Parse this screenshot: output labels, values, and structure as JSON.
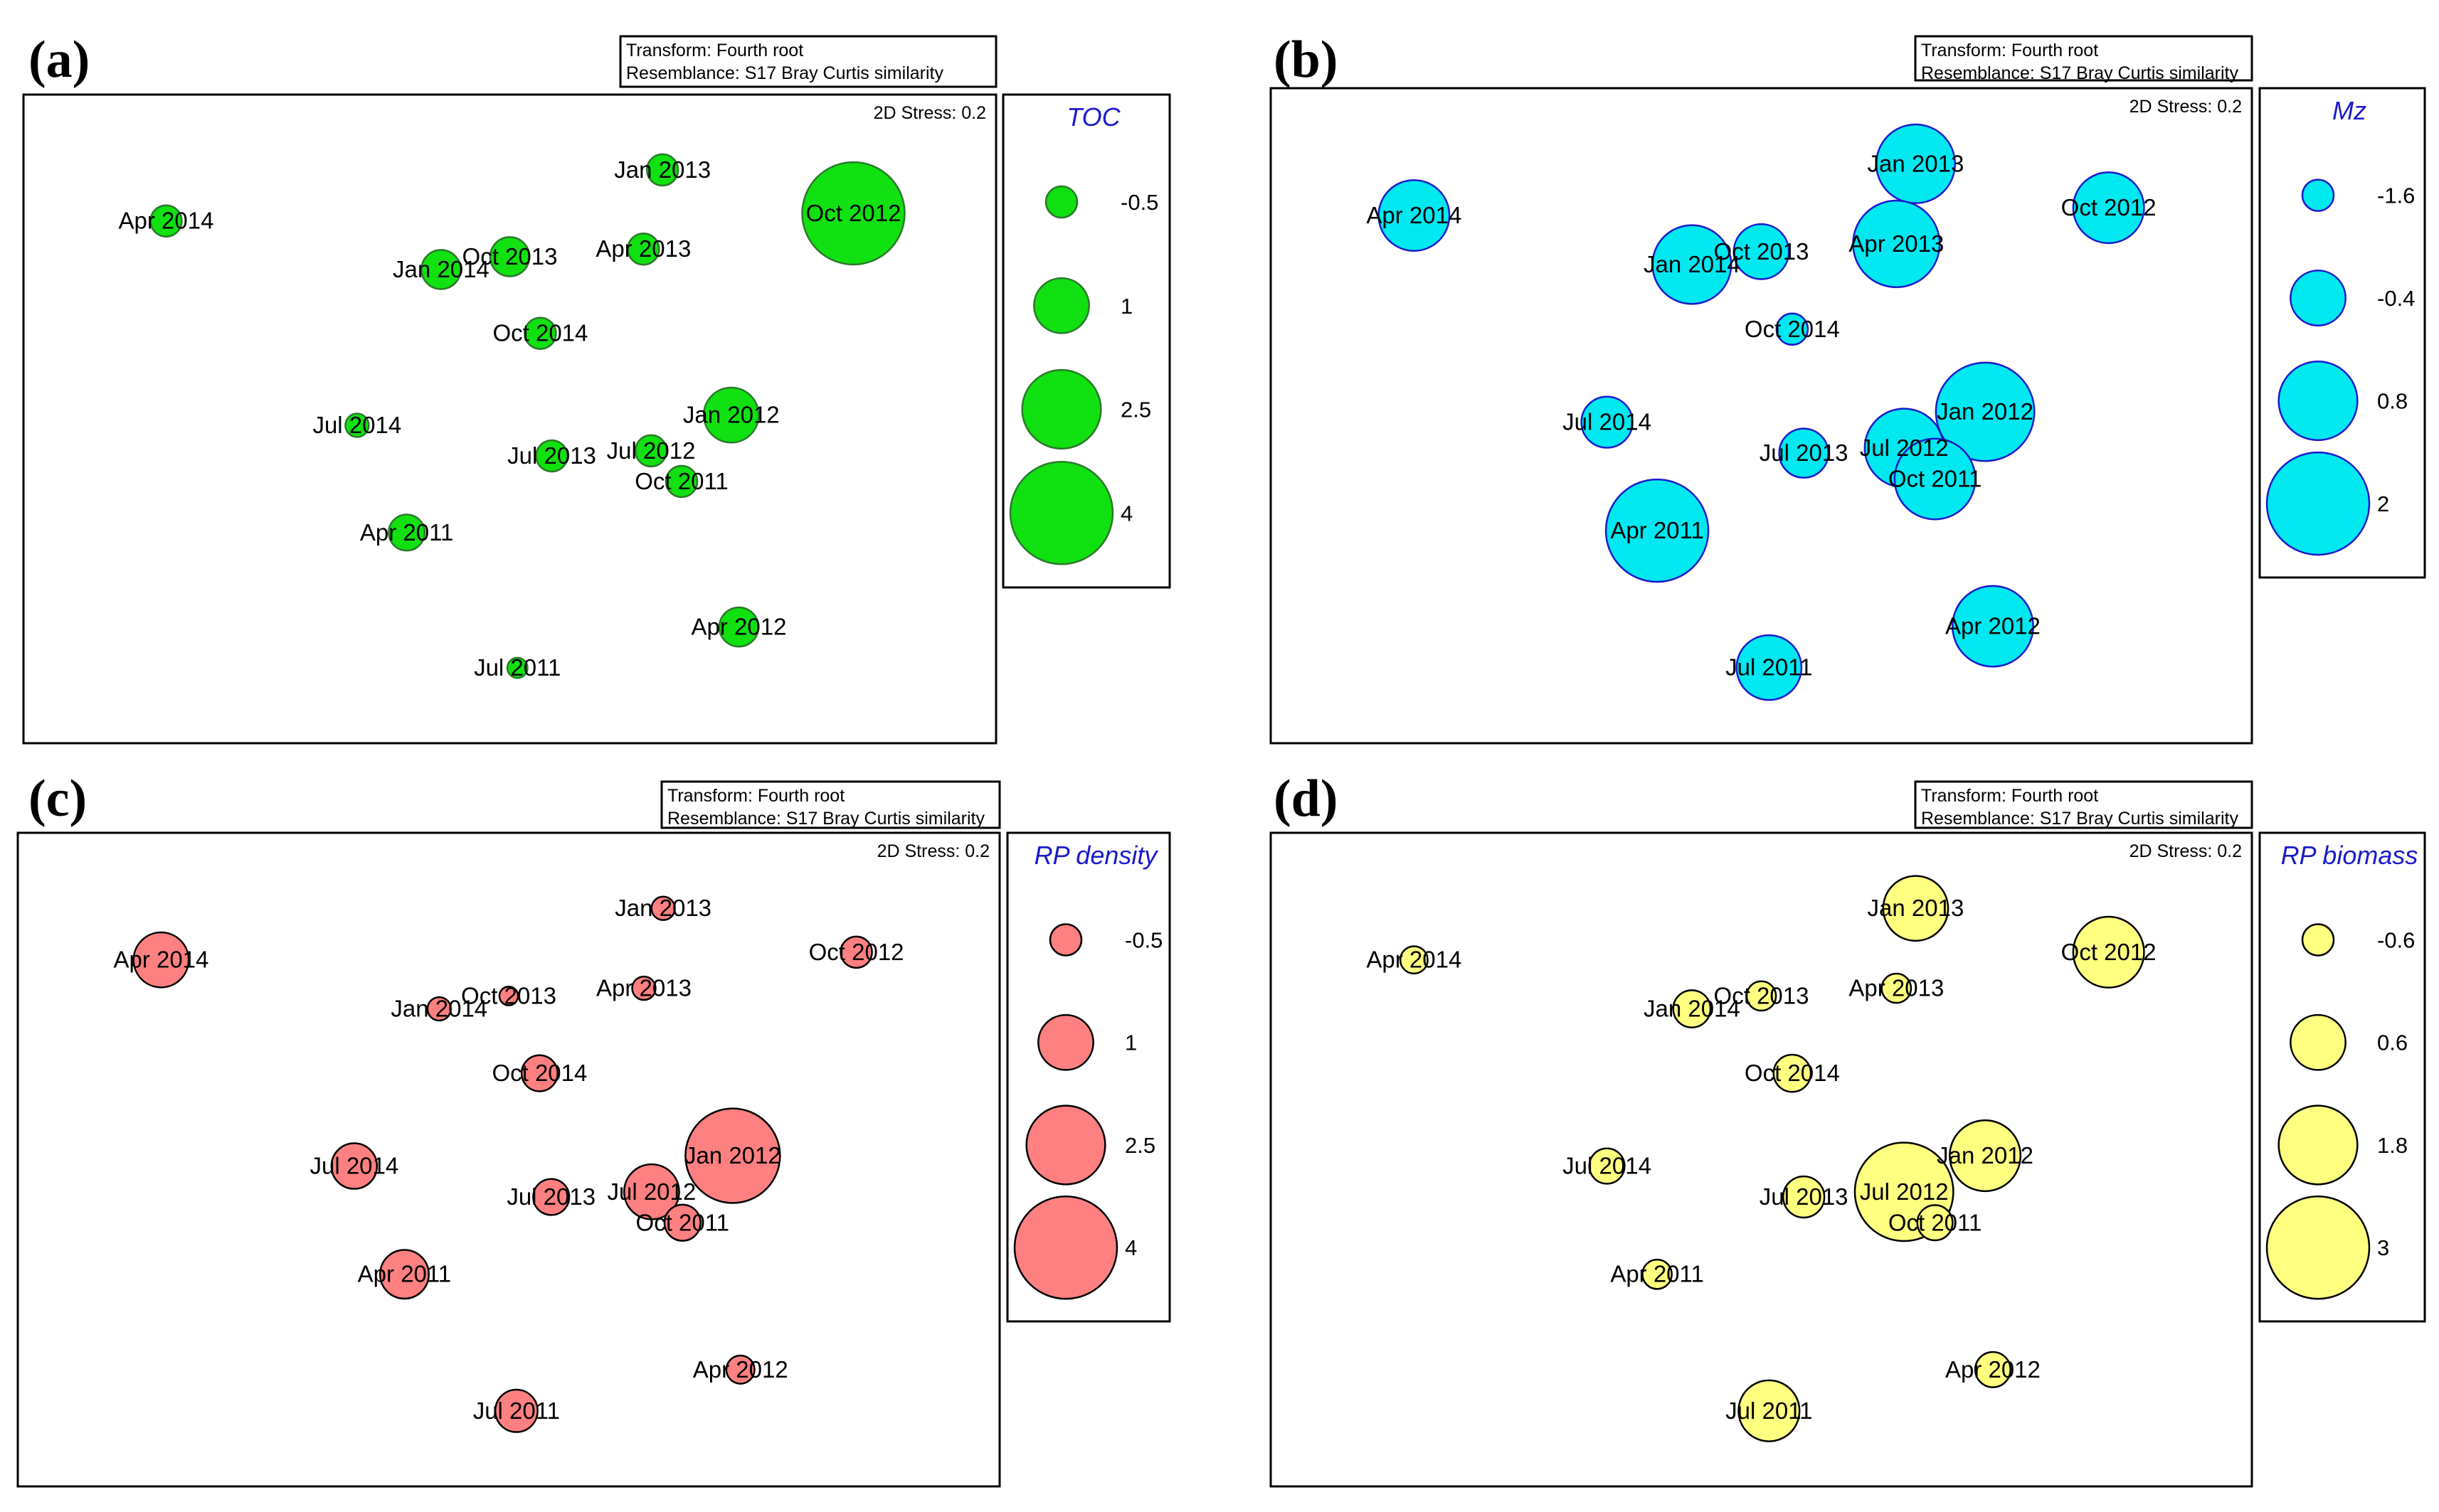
{
  "figure": {
    "transform_label": "Transform: Fourth root",
    "resemblance_label": "Resemblance: S17 Bray Curtis similarity",
    "stress_label": "2D Stress: 0.2"
  },
  "chart_data": [
    {
      "type": "scatter",
      "subtype": "bubble",
      "panel_label": "(a)",
      "variable": "TOC",
      "fill_color": "#11e011",
      "stroke_color": "#2a7a2a",
      "legend_values": [
        "-0.5",
        "1",
        "2.5",
        "4"
      ],
      "points": [
        {
          "label": "Jan 2013",
          "x": 0.4,
          "y": 1.0,
          "size": -0.5
        },
        {
          "label": "Oct 2012",
          "x": 0.9,
          "y": 0.83,
          "size": 4.0
        },
        {
          "label": "Apr 2014",
          "x": -0.9,
          "y": 0.8,
          "size": -0.5
        },
        {
          "label": "Apr 2013",
          "x": 0.35,
          "y": 0.69,
          "size": -0.5
        },
        {
          "label": "Oct 2013",
          "x": 0.0,
          "y": 0.66,
          "size": 0.0
        },
        {
          "label": "Jan 2014",
          "x": -0.18,
          "y": 0.61,
          "size": 0.0
        },
        {
          "label": "Oct 2014",
          "x": 0.08,
          "y": 0.36,
          "size": -0.5
        },
        {
          "label": "Jan 2012",
          "x": 0.58,
          "y": 0.04,
          "size": 1.0
        },
        {
          "label": "Jul 2014",
          "x": -0.4,
          "y": 0.0,
          "size": -1.0
        },
        {
          "label": "Jul 2012",
          "x": 0.37,
          "y": -0.1,
          "size": -0.5
        },
        {
          "label": "Jul 2013",
          "x": 0.11,
          "y": -0.12,
          "size": -0.5
        },
        {
          "label": "Oct 2011",
          "x": 0.45,
          "y": -0.22,
          "size": -0.5
        },
        {
          "label": "Apr 2011",
          "x": -0.27,
          "y": -0.42,
          "size": -0.2
        },
        {
          "label": "Apr 2012",
          "x": 0.6,
          "y": -0.79,
          "size": 0.0
        },
        {
          "label": "Jul 2011",
          "x": 0.02,
          "y": -0.95,
          "size": -1.2
        }
      ]
    },
    {
      "type": "scatter",
      "subtype": "bubble",
      "panel_label": "(b)",
      "variable": "Mz",
      "fill_color": "#00e8f0",
      "stroke_color": "#1a1acc",
      "legend_values": [
        "-1.6",
        "-0.4",
        "0.8",
        "2"
      ],
      "points": [
        {
          "label": "Jan 2013",
          "x": 0.4,
          "y": 1.0,
          "size": 0.8
        },
        {
          "label": "Oct 2012",
          "x": 0.9,
          "y": 0.83,
          "size": 0.4
        },
        {
          "label": "Apr 2014",
          "x": -0.9,
          "y": 0.8,
          "size": 0.4
        },
        {
          "label": "Apr 2013",
          "x": 0.35,
          "y": 0.69,
          "size": 1.2
        },
        {
          "label": "Oct 2013",
          "x": 0.0,
          "y": 0.66,
          "size": -0.4
        },
        {
          "label": "Jan 2014",
          "x": -0.18,
          "y": 0.61,
          "size": 0.8
        },
        {
          "label": "Oct 2014",
          "x": 0.08,
          "y": 0.36,
          "size": -1.6
        },
        {
          "label": "Jan 2012",
          "x": 0.58,
          "y": 0.04,
          "size": 1.8
        },
        {
          "label": "Jul 2014",
          "x": -0.4,
          "y": 0.0,
          "size": -0.6
        },
        {
          "label": "Jul 2012",
          "x": 0.37,
          "y": -0.1,
          "size": 0.8
        },
        {
          "label": "Jul 2013",
          "x": 0.11,
          "y": -0.12,
          "size": -0.7
        },
        {
          "label": "Oct 2011",
          "x": 0.45,
          "y": -0.22,
          "size": 0.9
        },
        {
          "label": "Apr 2011",
          "x": -0.27,
          "y": -0.42,
          "size": 2.0
        },
        {
          "label": "Apr 2012",
          "x": 0.6,
          "y": -0.79,
          "size": 0.9
        },
        {
          "label": "Jul 2011",
          "x": 0.02,
          "y": -0.95,
          "size": 0.1
        }
      ]
    },
    {
      "type": "scatter",
      "subtype": "bubble",
      "panel_label": "(c)",
      "variable": "RP density",
      "fill_color": "#ff8080",
      "stroke_color": "#000000",
      "legend_values": [
        "-0.5",
        "1",
        "2.5",
        "4"
      ],
      "points": [
        {
          "label": "Jan 2013",
          "x": 0.4,
          "y": 1.0,
          "size": -1.0
        },
        {
          "label": "Oct 2012",
          "x": 0.9,
          "y": 0.83,
          "size": -0.5
        },
        {
          "label": "Apr 2014",
          "x": -0.9,
          "y": 0.8,
          "size": 1.0
        },
        {
          "label": "Apr 2013",
          "x": 0.35,
          "y": 0.69,
          "size": -1.0
        },
        {
          "label": "Oct 2013",
          "x": 0.0,
          "y": 0.66,
          "size": -1.3
        },
        {
          "label": "Jan 2014",
          "x": -0.18,
          "y": 0.61,
          "size": -1.0
        },
        {
          "label": "Oct 2014",
          "x": 0.08,
          "y": 0.36,
          "size": -0.2
        },
        {
          "label": "Jan 2012",
          "x": 0.58,
          "y": 0.04,
          "size": 3.5
        },
        {
          "label": "Jul 2014",
          "x": -0.4,
          "y": 0.0,
          "size": 0.4
        },
        {
          "label": "Jul 2012",
          "x": 0.37,
          "y": -0.1,
          "size": 1.0
        },
        {
          "label": "Jul 2013",
          "x": 0.11,
          "y": -0.12,
          "size": -0.2
        },
        {
          "label": "Oct 2011",
          "x": 0.45,
          "y": -0.22,
          "size": -0.2
        },
        {
          "label": "Apr 2011",
          "x": -0.27,
          "y": -0.42,
          "size": 0.6
        },
        {
          "label": "Apr 2012",
          "x": 0.6,
          "y": -0.79,
          "size": -0.7
        },
        {
          "label": "Jul 2011",
          "x": 0.02,
          "y": -0.95,
          "size": 0.2
        }
      ]
    },
    {
      "type": "scatter",
      "subtype": "bubble",
      "panel_label": "(d)",
      "variable": "RP biomass",
      "fill_color": "#ffff80",
      "stroke_color": "#000000",
      "legend_values": [
        "-0.6",
        "0.6",
        "1.8",
        "3"
      ],
      "points": [
        {
          "label": "Jan 2013",
          "x": 0.4,
          "y": 1.0,
          "size": 1.1
        },
        {
          "label": "Oct 2012",
          "x": 0.9,
          "y": 0.83,
          "size": 1.4
        },
        {
          "label": "Apr 2014",
          "x": -0.9,
          "y": 0.8,
          "size": -0.8
        },
        {
          "label": "Apr 2013",
          "x": 0.35,
          "y": 0.69,
          "size": -0.7
        },
        {
          "label": "Oct 2013",
          "x": 0.0,
          "y": 0.66,
          "size": -0.7
        },
        {
          "label": "Jan 2014",
          "x": -0.18,
          "y": 0.61,
          "size": -0.3
        },
        {
          "label": "Oct 2014",
          "x": 0.08,
          "y": 0.36,
          "size": -0.3
        },
        {
          "label": "Jan 2012",
          "x": 0.58,
          "y": 0.04,
          "size": 1.4
        },
        {
          "label": "Jul 2014",
          "x": -0.4,
          "y": 0.0,
          "size": -0.4
        },
        {
          "label": "Jul 2012",
          "x": 0.37,
          "y": -0.1,
          "size": 2.8
        },
        {
          "label": "Jul 2013",
          "x": 0.11,
          "y": -0.12,
          "size": -0.1
        },
        {
          "label": "Oct 2011",
          "x": 0.45,
          "y": -0.22,
          "size": -0.4
        },
        {
          "label": "Apr 2011",
          "x": -0.27,
          "y": -0.42,
          "size": -0.7
        },
        {
          "label": "Apr 2012",
          "x": 0.6,
          "y": -0.79,
          "size": -0.4
        },
        {
          "label": "Jul 2011",
          "x": 0.02,
          "y": -0.95,
          "size": 0.9
        }
      ]
    }
  ]
}
